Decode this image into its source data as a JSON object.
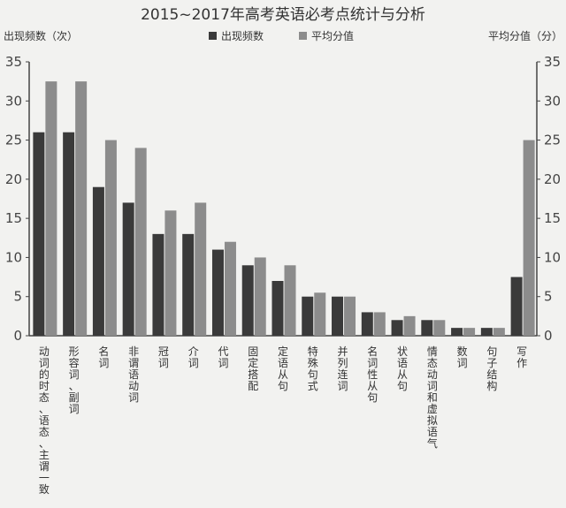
{
  "chart_data": {
    "type": "bar",
    "title": "2015~2017年高考英语必考点统计与分析",
    "ylabel_left": "出现频数（次）",
    "ylabel_right": "平均分值（分）",
    "ylim": [
      0,
      35
    ],
    "y_ticks": [
      "0",
      "5",
      "10",
      "15",
      "20",
      "25",
      "30",
      "35"
    ],
    "legend_position": "top-center",
    "categories": [
      "动词的时态、语态、主谓一致",
      "形容词、副词",
      "名词",
      "非谓语动词",
      "冠词",
      "介词",
      "代词",
      "固定搭配",
      "定语从句",
      "特殊句式",
      "并列连词",
      "名词性从句",
      "状语从句",
      "情态动词和虚拟语气",
      "数词",
      "句子结构",
      "写作"
    ],
    "series": [
      {
        "name": "出现频数",
        "color": "#3a3a3a",
        "values": [
          26,
          26,
          19,
          17,
          13,
          13,
          11,
          9,
          7,
          5,
          5,
          3,
          2,
          2,
          1,
          1,
          7.5
        ]
      },
      {
        "name": "平均分值",
        "color": "#8c8c8c",
        "values": [
          32.5,
          32.5,
          25,
          24,
          16,
          17,
          12,
          10,
          9,
          5.5,
          5,
          3,
          2.5,
          2,
          1,
          1,
          25
        ]
      }
    ]
  }
}
